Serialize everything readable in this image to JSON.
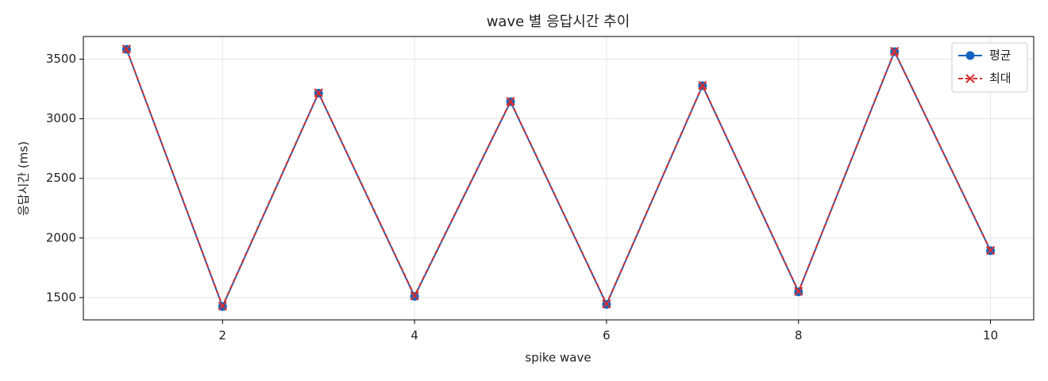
{
  "chart_data": {
    "type": "line",
    "title": "wave 별 응답시간 추이",
    "xlabel": "spike wave",
    "ylabel": "응답시간 (ms)",
    "x": [
      1,
      2,
      3,
      4,
      5,
      6,
      7,
      8,
      9,
      10
    ],
    "series": [
      {
        "name": "평균",
        "color": "#1565c0",
        "marker": "circle",
        "dash": false,
        "values": [
          3583,
          1425,
          3215,
          1510,
          3143,
          1443,
          3277,
          1548,
          3563,
          1893
        ]
      },
      {
        "name": "최대",
        "color": "#d32f2f",
        "marker": "x",
        "dash": true,
        "values": [
          3585,
          1430,
          3218,
          1515,
          3146,
          1447,
          3280,
          1552,
          3566,
          1896
        ]
      }
    ],
    "xlim": [
      0.55,
      10.45
    ],
    "ylim": [
      1313,
      3690
    ],
    "xticks": [
      2,
      4,
      6,
      8,
      10
    ],
    "yticks": [
      1500,
      2000,
      2500,
      3000,
      3500
    ],
    "grid": true,
    "legend": "upper right"
  }
}
